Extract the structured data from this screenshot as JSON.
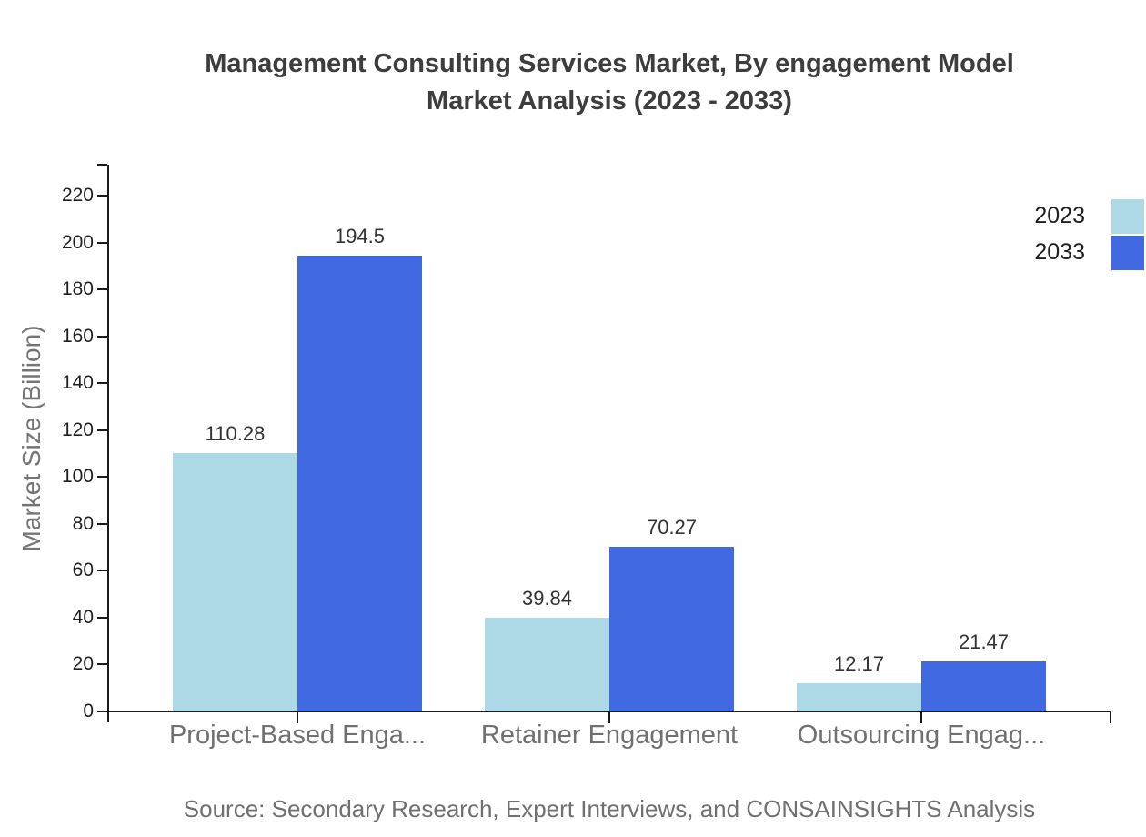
{
  "title": {
    "line1": "Management Consulting Services Market, By engagement Model",
    "line2": "Market Analysis (2023 - 2033)"
  },
  "y_axis_label": "Market Size (Billion)",
  "source": "Source: Secondary Research, Expert Interviews, and CONSAINSIGHTS Analysis",
  "legend": {
    "items": [
      {
        "label": "2023",
        "color": "#ADD8E6"
      },
      {
        "label": "2033",
        "color": "#4169E1"
      }
    ]
  },
  "chart_data": {
    "type": "bar",
    "title": "Management Consulting Services Market, By engagement Model Market Analysis (2023 - 2033)",
    "categories": [
      "Project-Based Enga...",
      "Retainer Engagement",
      "Outsourcing Engag..."
    ],
    "series": [
      {
        "name": "2023",
        "color": "#ADD8E6",
        "values": [
          110.28,
          39.84,
          12.17
        ],
        "value_labels": [
          "110.28",
          "39.84",
          "12.17"
        ]
      },
      {
        "name": "2033",
        "color": "#4169E1",
        "values": [
          194.5,
          70.27,
          21.47
        ],
        "value_labels": [
          "194.5",
          "70.27",
          "21.47"
        ]
      }
    ],
    "xlabel": "",
    "ylabel": "Market Size (Billion)",
    "ylim": [
      0,
      230
    ],
    "y_ticks": [
      0,
      20,
      40,
      60,
      80,
      100,
      120,
      140,
      160,
      180,
      200,
      220
    ],
    "grid": false,
    "legend_position": "top-right"
  }
}
